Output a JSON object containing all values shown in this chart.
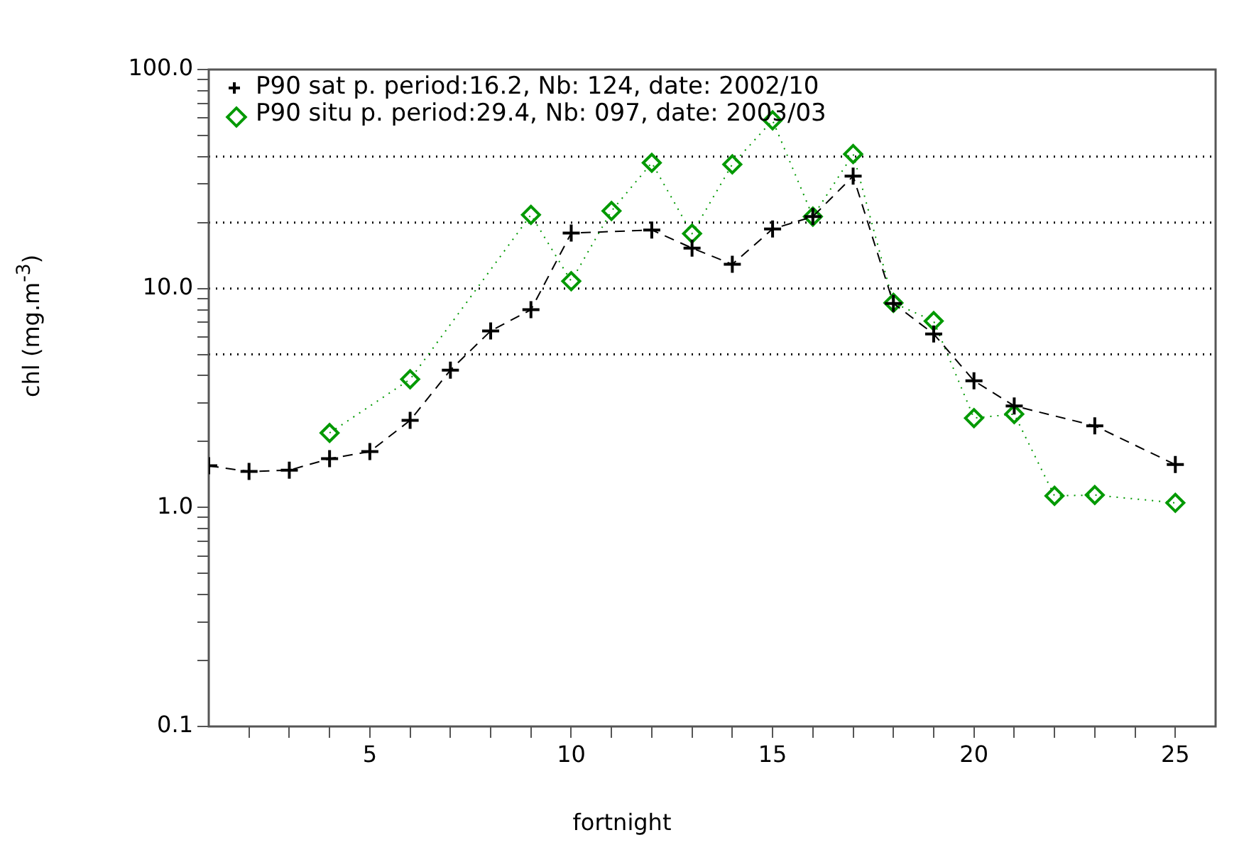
{
  "chart_data": {
    "type": "line",
    "xlabel": "fortnight",
    "ylabel": "chl (mg.m$^{-3}$)",
    "x": [
      1,
      2,
      3,
      4,
      5,
      6,
      7,
      8,
      9,
      10,
      11,
      12,
      13,
      14,
      15,
      16,
      17,
      18,
      19,
      20,
      21,
      22,
      23,
      24,
      25
    ],
    "series": [
      {
        "name": "P90 sat p. period:16.2, Nb: 124, date: 2002/10",
        "color": "#000000",
        "marker": "cross",
        "line_style": "dashed",
        "values": [
          1.55,
          1.46,
          1.48,
          1.67,
          1.8,
          2.5,
          4.24,
          6.4,
          8.0,
          17.9,
          null,
          18.5,
          15.3,
          12.9,
          18.7,
          21.3,
          32.6,
          8.55,
          6.2,
          3.79,
          2.91,
          null,
          2.36,
          null,
          1.57
        ]
      },
      {
        "name": "P90 situ p. period:29.4, Nb: 097, date: 2003/03",
        "color": "#009900",
        "marker": "diamond",
        "line_style": "dotted",
        "values": [
          null,
          null,
          null,
          2.19,
          null,
          3.85,
          null,
          null,
          21.7,
          10.8,
          22.6,
          37.5,
          17.8,
          36.9,
          58.6,
          21.3,
          41.1,
          8.6,
          7.1,
          2.56,
          2.67,
          1.13,
          1.14,
          null,
          1.05
        ]
      }
    ],
    "log": "y",
    "xlim": [
      1,
      26
    ],
    "xticks": [
      {
        "value": 2,
        "label": null
      },
      {
        "value": 3,
        "label": null
      },
      {
        "value": 4,
        "label": null
      },
      5,
      {
        "value": 6,
        "label": null
      },
      {
        "value": 7,
        "label": null
      },
      {
        "value": 8,
        "label": null
      },
      {
        "value": 9,
        "label": null
      },
      10,
      {
        "value": 11,
        "label": null
      },
      {
        "value": 12,
        "label": null
      },
      {
        "value": 13,
        "label": null
      },
      {
        "value": 14,
        "label": null
      },
      15,
      {
        "value": 16,
        "label": null
      },
      {
        "value": 17,
        "label": null
      },
      {
        "value": 18,
        "label": null
      },
      {
        "value": 19,
        "label": null
      },
      20,
      {
        "value": 21,
        "label": null
      },
      {
        "value": 22,
        "label": null
      },
      {
        "value": 23,
        "label": null
      },
      {
        "value": 24,
        "label": null
      },
      25
    ],
    "ylim": [
      0.1,
      100
    ],
    "yticks": [
      {
        "value": 0.1,
        "label": "0.1"
      },
      {
        "value": 0.2,
        "label": null
      },
      {
        "value": 0.3,
        "label": null
      },
      {
        "value": 0.4,
        "label": null
      },
      {
        "value": 0.5,
        "label": null
      },
      {
        "value": 0.6,
        "label": null
      },
      {
        "value": 0.7,
        "label": null
      },
      {
        "value": 0.8,
        "label": null
      },
      {
        "value": 0.9,
        "label": null
      },
      {
        "value": 1,
        "label": "1.0"
      },
      {
        "value": 2,
        "label": null
      },
      {
        "value": 3,
        "label": null
      },
      {
        "value": 4,
        "label": null
      },
      {
        "value": 5,
        "label": null
      },
      {
        "value": 6,
        "label": null
      },
      {
        "value": 7,
        "label": null
      },
      {
        "value": 8,
        "label": null
      },
      {
        "value": 9,
        "label": null
      },
      {
        "value": 10,
        "label": "10.0"
      },
      {
        "value": 20,
        "label": null
      },
      {
        "value": 30,
        "label": null
      },
      {
        "value": 40,
        "label": null
      },
      {
        "value": 50,
        "label": null
      },
      {
        "value": 60,
        "label": null
      },
      {
        "value": 70,
        "label": null
      },
      {
        "value": 80,
        "label": null
      },
      {
        "value": 90,
        "label": null
      },
      {
        "value": 100,
        "label": "100.0"
      }
    ],
    "ref_lines": [
      {
        "axis": "y",
        "value": 40,
        "color": "#000000",
        "line_style": "dotted"
      },
      {
        "axis": "y",
        "value": 20,
        "color": "#000000",
        "line_style": "dotted"
      },
      {
        "axis": "y",
        "value": 10,
        "color": "#000000",
        "line_style": "dotted"
      },
      {
        "axis": "y",
        "value": 5,
        "color": "#000000",
        "line_style": "dotted"
      }
    ],
    "legend": "top left",
    "grid": false
  }
}
